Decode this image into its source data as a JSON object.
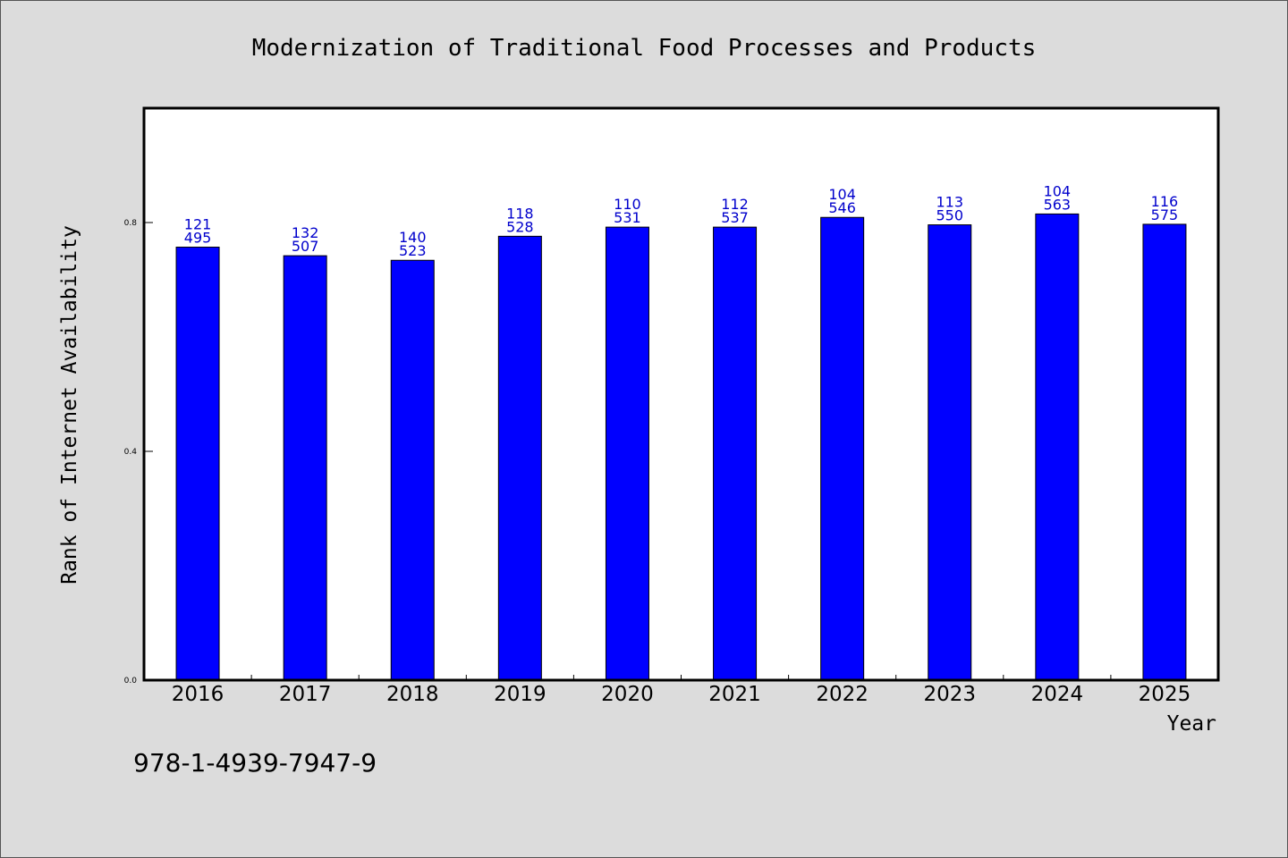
{
  "chart_data": {
    "type": "bar",
    "title": "Modernization of Traditional Food Processes and Products",
    "xlabel": "Year",
    "ylabel": "Rank of Internet Availability",
    "ylim": [
      0,
      1.0
    ],
    "yticks": [
      "0.0",
      "0.4",
      "0.8"
    ],
    "grid": false,
    "categories": [
      "2016",
      "2017",
      "2018",
      "2019",
      "2020",
      "2021",
      "2022",
      "2023",
      "2024",
      "2025"
    ],
    "values": [
      0.757,
      0.742,
      0.734,
      0.776,
      0.792,
      0.792,
      0.809,
      0.796,
      0.815,
      0.797
    ],
    "label_top": [
      "121",
      "132",
      "140",
      "118",
      "110",
      "112",
      "104",
      "113",
      "104",
      "116"
    ],
    "label_bottom": [
      "495",
      "507",
      "523",
      "528",
      "531",
      "537",
      "546",
      "550",
      "563",
      "575"
    ],
    "colors": {
      "bar": "#0000ff",
      "label": "#0000cc",
      "background": "#dcdcdc",
      "plot": "#ffffff"
    }
  },
  "footer": {
    "isbn": "978-1-4939-7947-9"
  }
}
